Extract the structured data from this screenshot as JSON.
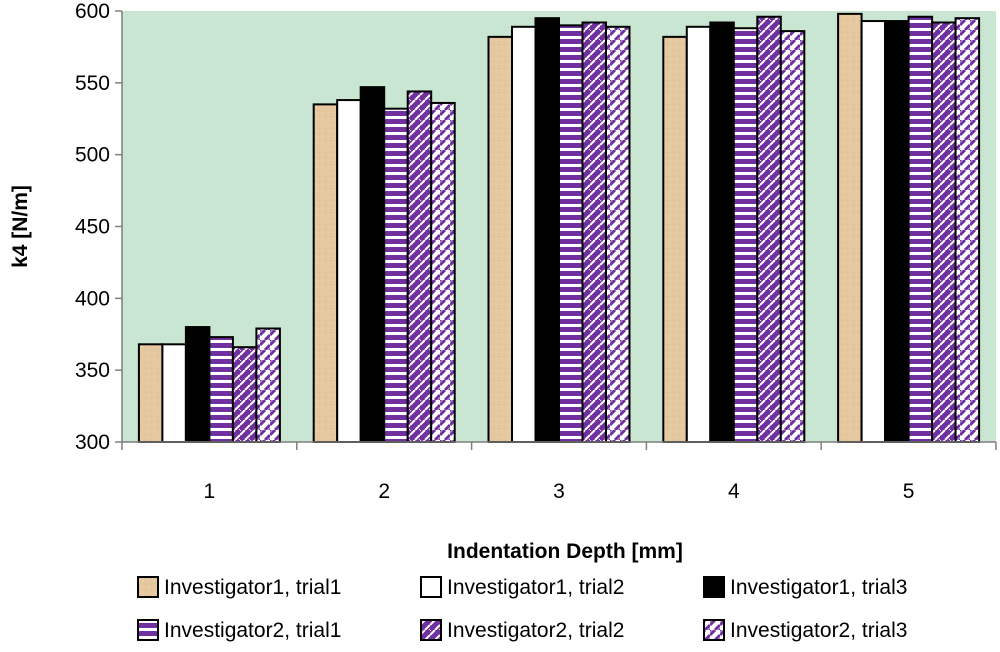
{
  "chart_data": {
    "type": "bar",
    "title": "",
    "xlabel": "Indentation Depth [mm]",
    "ylabel": "k4 [N/m]",
    "ylim": [
      300,
      600
    ],
    "yticks": [
      300,
      350,
      400,
      450,
      500,
      550,
      600
    ],
    "categories": [
      "1",
      "2",
      "3",
      "4",
      "5"
    ],
    "grid": false,
    "background_color": "#c8e6d2",
    "legend_position": "bottom",
    "series": [
      {
        "name": "Investigator1, trial1",
        "values": [
          368,
          535,
          582,
          582,
          598
        ],
        "fill": "#e6c8a0",
        "pattern": "texture"
      },
      {
        "name": "Investigator1, trial2",
        "values": [
          368,
          538,
          589,
          589,
          593
        ],
        "fill": "#ffffff",
        "pattern": "solid"
      },
      {
        "name": "Investigator1, trial3",
        "values": [
          380,
          547,
          595,
          592,
          593
        ],
        "fill": "#000000",
        "pattern": "solid"
      },
      {
        "name": "Investigator2, trial1",
        "values": [
          373,
          532,
          590,
          588,
          596
        ],
        "fill": "#7030a0",
        "pattern": "horizontal-stripes"
      },
      {
        "name": "Investigator2, trial2",
        "values": [
          366,
          544,
          592,
          596,
          592
        ],
        "fill": "#7030a0",
        "pattern": "zigzag-dark"
      },
      {
        "name": "Investigator2, trial3",
        "values": [
          379,
          536,
          589,
          586,
          595
        ],
        "fill": "#7030a0",
        "pattern": "zigzag-light"
      }
    ]
  }
}
